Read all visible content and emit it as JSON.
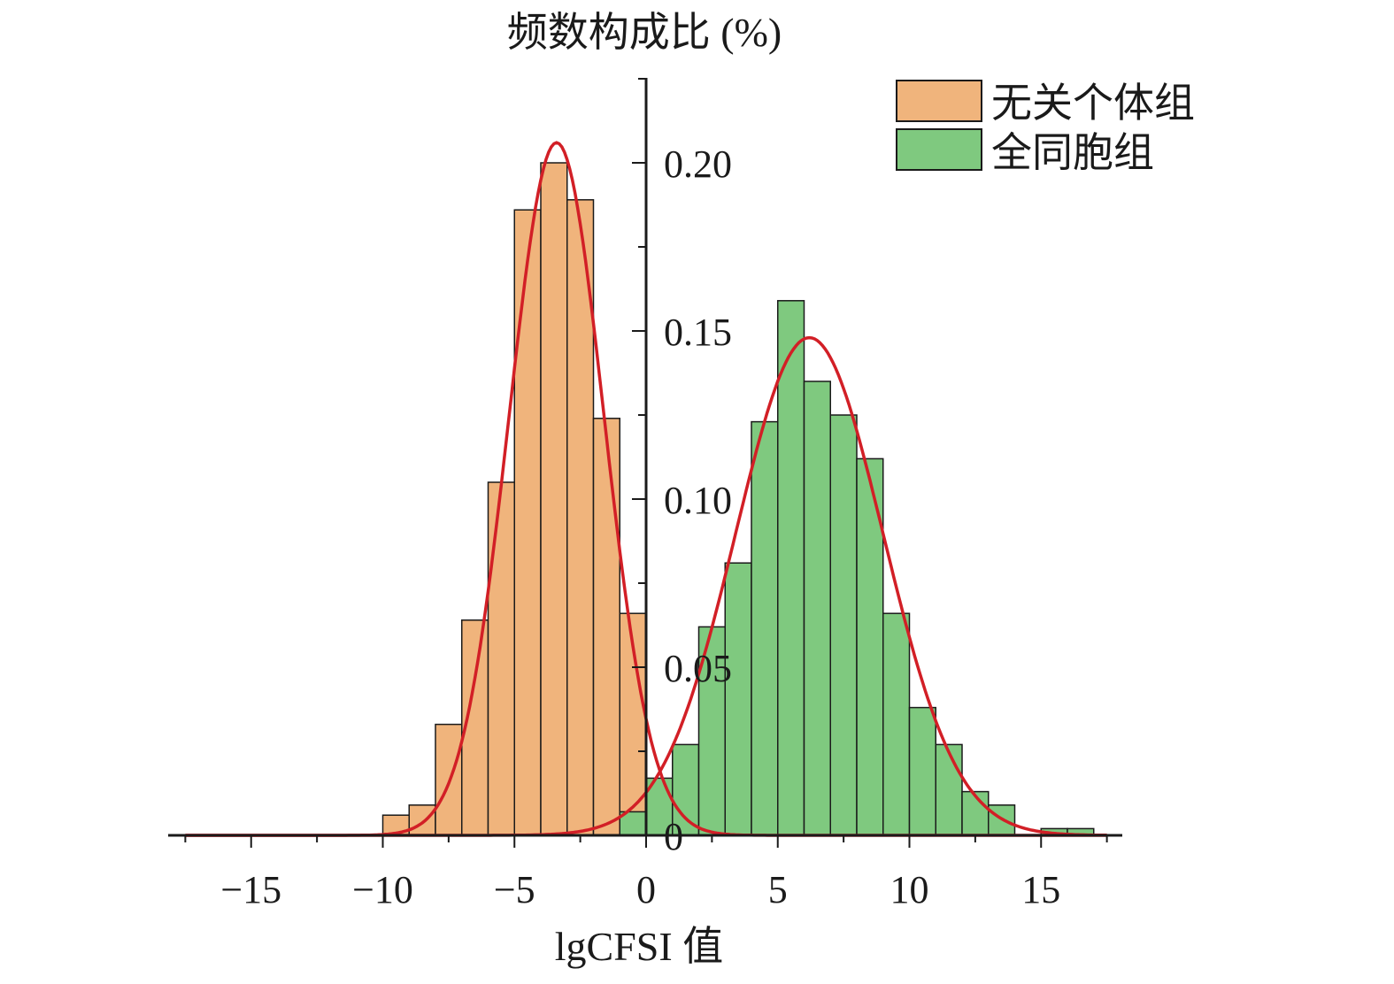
{
  "chart_data": {
    "type": "bar",
    "ylabel": "频数构成比 (%)",
    "xlabel": "lgCFSI 值",
    "xlim": [
      -17.5,
      17.8
    ],
    "ylim": [
      0,
      0.225
    ],
    "x_ticks": [
      {
        "value": -15,
        "label": "−15"
      },
      {
        "value": -10,
        "label": "−10"
      },
      {
        "value": -5,
        "label": "−5"
      },
      {
        "value": 0,
        "label": "0"
      },
      {
        "value": 5,
        "label": "5"
      },
      {
        "value": 10,
        "label": "10"
      },
      {
        "value": 15,
        "label": "15"
      }
    ],
    "y_ticks": [
      {
        "value": 0,
        "label": "0"
      },
      {
        "value": 0.05,
        "label": "0.05"
      },
      {
        "value": 0.1,
        "label": "0.10"
      },
      {
        "value": 0.15,
        "label": "0.15"
      },
      {
        "value": 0.2,
        "label": "0.20"
      }
    ],
    "bin_width": 1.0,
    "legend_position": "top-right",
    "series": [
      {
        "name": "无关个体组",
        "color": "#f0b47c",
        "bins": [
          {
            "center": -9.5,
            "value": 0.006
          },
          {
            "center": -8.5,
            "value": 0.009
          },
          {
            "center": -7.5,
            "value": 0.033
          },
          {
            "center": -6.5,
            "value": 0.064
          },
          {
            "center": -5.5,
            "value": 0.105
          },
          {
            "center": -4.5,
            "value": 0.186
          },
          {
            "center": -3.5,
            "value": 0.2
          },
          {
            "center": -2.5,
            "value": 0.189
          },
          {
            "center": -1.5,
            "value": 0.124
          },
          {
            "center": -0.5,
            "value": 0.066
          }
        ],
        "fit": {
          "type": "normal",
          "mean": -3.4,
          "sd": 1.8,
          "peak": 0.206
        }
      },
      {
        "name": "全同胞组",
        "color": "#7fc97f",
        "bins": [
          {
            "center": -0.5,
            "value": 0.007
          },
          {
            "center": 0.5,
            "value": 0.017
          },
          {
            "center": 1.5,
            "value": 0.027
          },
          {
            "center": 2.5,
            "value": 0.062
          },
          {
            "center": 3.5,
            "value": 0.081
          },
          {
            "center": 4.5,
            "value": 0.123
          },
          {
            "center": 5.5,
            "value": 0.159
          },
          {
            "center": 6.5,
            "value": 0.135
          },
          {
            "center": 7.5,
            "value": 0.125
          },
          {
            "center": 8.5,
            "value": 0.112
          },
          {
            "center": 9.5,
            "value": 0.066
          },
          {
            "center": 10.5,
            "value": 0.038
          },
          {
            "center": 11.5,
            "value": 0.027
          },
          {
            "center": 12.5,
            "value": 0.013
          },
          {
            "center": 13.5,
            "value": 0.009
          },
          {
            "center": 15.5,
            "value": 0.002
          },
          {
            "center": 16.5,
            "value": 0.002
          }
        ],
        "fit": {
          "type": "normal",
          "mean": 6.2,
          "sd": 2.8,
          "peak": 0.148
        }
      }
    ],
    "fit_line_color": "#d21f26",
    "axis_color": "#1a1a1a"
  }
}
